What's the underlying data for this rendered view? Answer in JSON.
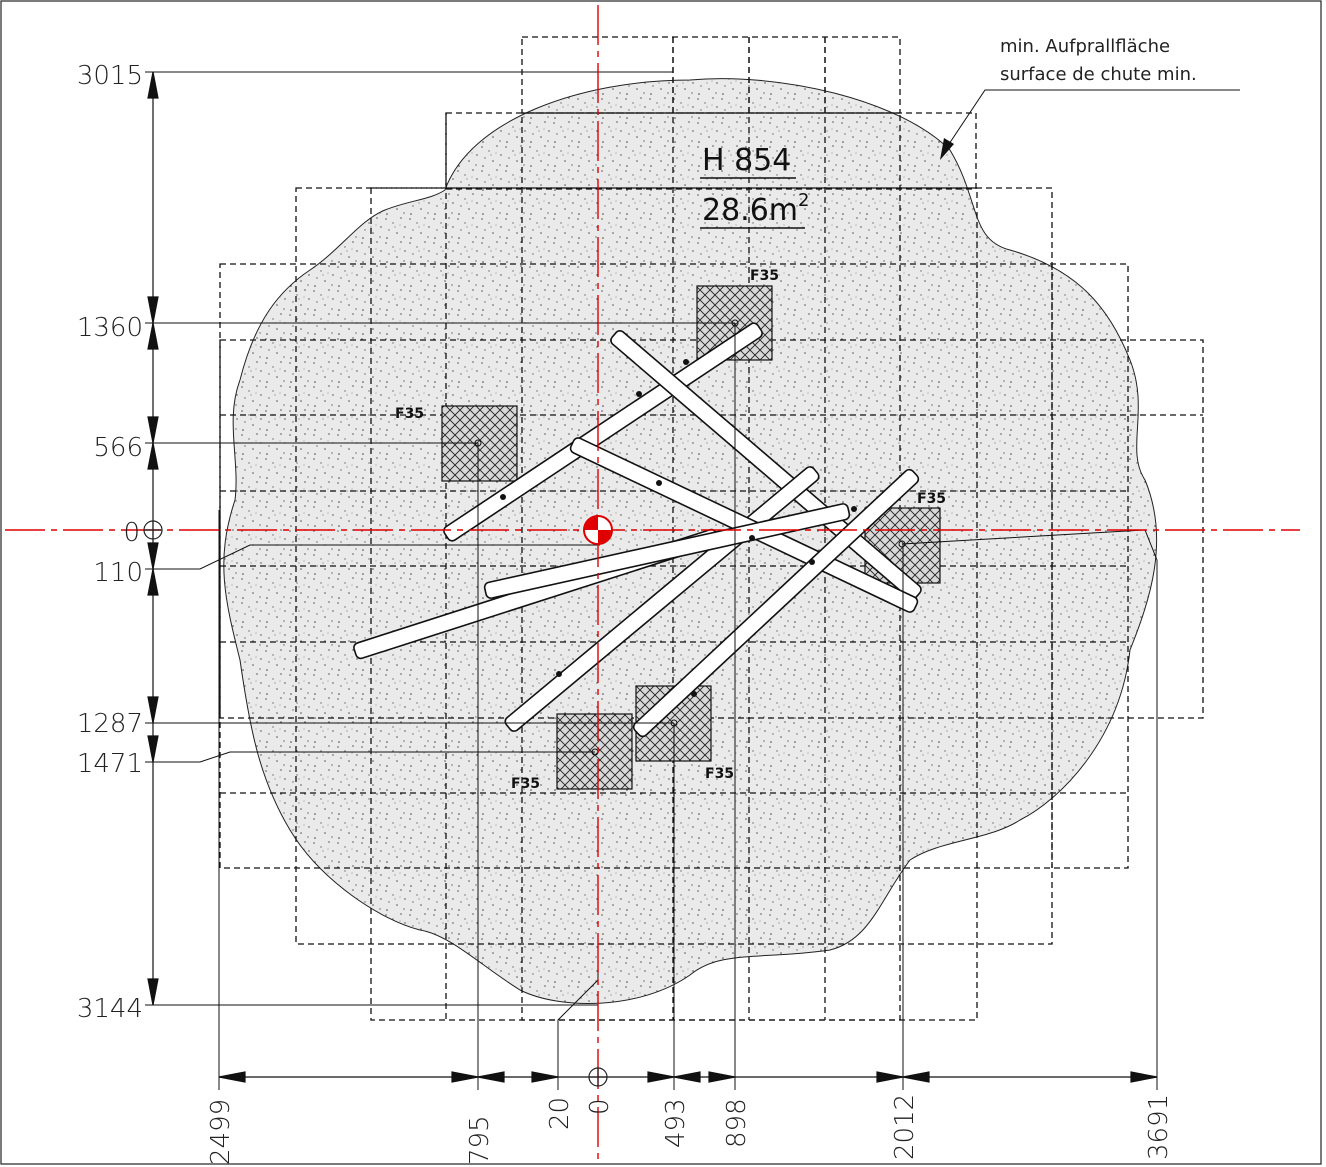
{
  "drawing": {
    "title": "H 854",
    "area_value": "28.6m",
    "area_exponent": "2",
    "surface_label_de": "min. Aufprallfläche",
    "surface_label_fr": "surface de chute min.",
    "foundation_label": "F35",
    "vertical_dimensions": [
      "3015",
      "1360",
      "566",
      "0",
      "110",
      "1287",
      "1471",
      "3144"
    ],
    "horizontal_dimensions": [
      "2499",
      "795",
      "20",
      "0",
      "493",
      "898",
      "2012",
      "3691"
    ],
    "colors": {
      "axis": "#e00000",
      "ink": "#111111",
      "fill": "#e6e6e6"
    }
  }
}
